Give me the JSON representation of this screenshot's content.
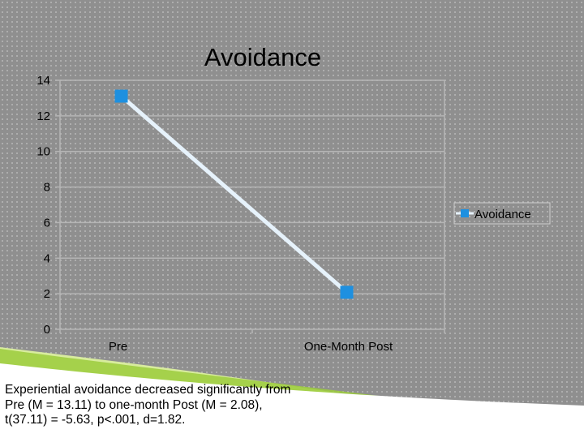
{
  "chart_data": {
    "type": "line",
    "title": "Avoidance",
    "categories": [
      "Pre",
      "One-Month Post"
    ],
    "series": [
      {
        "name": "Avoidance",
        "values": [
          13.11,
          2.08
        ],
        "color": "#1e90e0"
      }
    ],
    "ylim": [
      0,
      14
    ],
    "yticks": [
      "0",
      "2",
      "4",
      "6",
      "8",
      "10",
      "12",
      "14"
    ],
    "xlabel": "",
    "ylabel": "",
    "grid": true,
    "legend_position": "right",
    "line_color": "#e6f2fb",
    "gridline_color": "#b5b5b5"
  },
  "caption": {
    "lines": [
      "Experiential avoidance decreased significantly from",
      "Pre (M = 13.11) to one-month Post (M = 2.08),",
      "t(37.11) = -5.63, p<.001, d=1.82."
    ]
  },
  "decoration": {
    "swoosh_colors": [
      "#9ccc3c",
      "#d8ec9e",
      "#ffffff"
    ]
  }
}
